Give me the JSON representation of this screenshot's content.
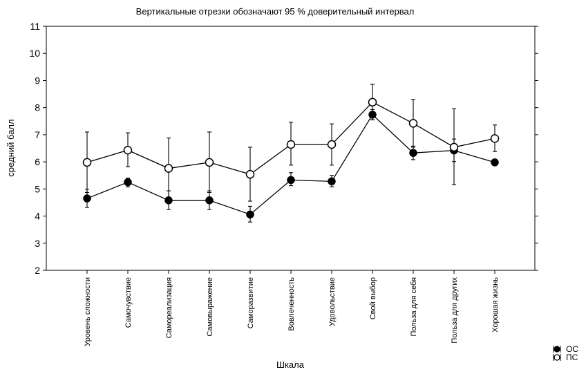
{
  "chart_data": {
    "type": "line",
    "title": "Вертикальные отрезки обозначают 95 % доверительный интервал",
    "xlabel": "Шкала",
    "ylabel": "средний балл",
    "ylim": [
      2,
      11
    ],
    "yticks": [
      2,
      3,
      4,
      5,
      6,
      7,
      8,
      9,
      10,
      11
    ],
    "grid": false,
    "legend_position": "bottom-right",
    "categories": [
      "Уровень сложности",
      "Самочувствие",
      "Самореализация",
      "Самовыражение",
      "Саморазвитие",
      "Вовлеченность",
      "Удовольствие",
      "Свой выбор",
      "Польза для себя",
      "Польза для других",
      "Хорошая жизнь"
    ],
    "series": [
      {
        "name": "ОС",
        "marker": "filled-circle",
        "color": "#000000",
        "values": [
          4.65,
          5.25,
          4.58,
          4.58,
          4.06,
          5.33,
          5.28,
          7.74,
          6.33,
          6.42,
          5.98
        ],
        "ci_low": [
          4.32,
          5.08,
          4.24,
          4.24,
          3.78,
          5.12,
          5.08,
          7.55,
          6.08,
          6.01,
          5.92
        ],
        "ci_high": [
          4.99,
          5.4,
          4.93,
          4.93,
          4.36,
          5.6,
          5.5,
          7.93,
          6.58,
          6.84,
          6.08
        ]
      },
      {
        "name": "ПС",
        "marker": "open-circle",
        "color": "#000000",
        "values": [
          5.98,
          6.43,
          5.76,
          5.98,
          5.54,
          6.64,
          6.64,
          8.2,
          7.42,
          6.54,
          6.86
        ],
        "ci_low": [
          4.87,
          5.82,
          4.64,
          4.87,
          4.55,
          5.88,
          5.88,
          7.55,
          6.54,
          5.16,
          6.38
        ],
        "ci_high": [
          7.1,
          7.07,
          6.88,
          7.1,
          6.54,
          7.46,
          7.4,
          8.86,
          8.3,
          7.96,
          7.36
        ]
      }
    ]
  }
}
